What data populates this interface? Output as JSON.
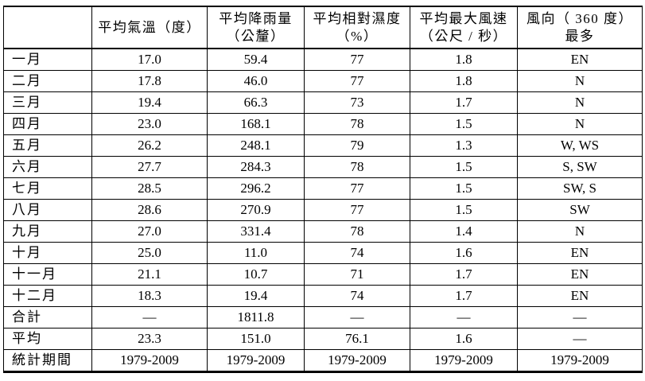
{
  "table": {
    "title_semantic": "monthly-climate-statistics",
    "headers": [
      "",
      "平均氣溫（度）",
      "平均降雨量\n（公釐）",
      "平均相對濕度\n（%）",
      "平均最大風速\n（公尺 / 秒）",
      "風向（ 360 度）\n最多"
    ],
    "rows": [
      {
        "label": "一月",
        "values": [
          "17.0",
          "59.4",
          "77",
          "1.8",
          "EN"
        ]
      },
      {
        "label": "二月",
        "values": [
          "17.8",
          "46.0",
          "77",
          "1.8",
          "N"
        ]
      },
      {
        "label": "三月",
        "values": [
          "19.4",
          "66.3",
          "73",
          "1.7",
          "N"
        ]
      },
      {
        "label": "四月",
        "values": [
          "23.0",
          "168.1",
          "78",
          "1.5",
          "N"
        ]
      },
      {
        "label": "五月",
        "values": [
          "26.2",
          "248.1",
          "79",
          "1.3",
          "W, WS"
        ]
      },
      {
        "label": "六月",
        "values": [
          "27.7",
          "284.3",
          "78",
          "1.5",
          "S, SW"
        ]
      },
      {
        "label": "七月",
        "values": [
          "28.5",
          "296.2",
          "77",
          "1.5",
          "SW, S"
        ]
      },
      {
        "label": "八月",
        "values": [
          "28.6",
          "270.9",
          "77",
          "1.5",
          "SW"
        ]
      },
      {
        "label": "九月",
        "values": [
          "27.0",
          "331.4",
          "78",
          "1.4",
          "N"
        ]
      },
      {
        "label": "十月",
        "values": [
          "25.0",
          "11.0",
          "74",
          "1.6",
          "EN"
        ]
      },
      {
        "label": "十一月",
        "values": [
          "21.1",
          "10.7",
          "71",
          "1.7",
          "EN"
        ]
      },
      {
        "label": "十二月",
        "values": [
          "18.3",
          "19.4",
          "74",
          "1.7",
          "EN"
        ]
      },
      {
        "label": "合計",
        "values": [
          "—",
          "1811.8",
          "—",
          "—",
          "—"
        ]
      },
      {
        "label": "平均",
        "values": [
          "23.3",
          "151.0",
          "76.1",
          "1.6",
          "—"
        ]
      },
      {
        "label": "統計期間",
        "values": [
          "1979-2009",
          "1979-2009",
          "1979-2009",
          "1979-2009",
          "1979-2009"
        ]
      }
    ],
    "colors": {
      "text": "#000000",
      "background": "#ffffff",
      "border": "#000000"
    }
  }
}
